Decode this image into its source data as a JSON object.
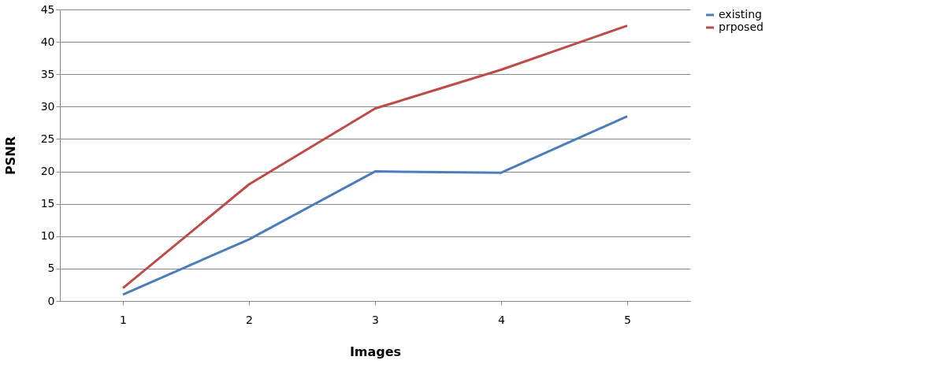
{
  "chart_data": {
    "type": "line",
    "xlabel": "Images",
    "ylabel": "PSNR",
    "categories": [
      "1",
      "2",
      "3",
      "4",
      "5"
    ],
    "series": [
      {
        "name": "existing",
        "color": "#4a7ebb",
        "values": [
          1,
          9.5,
          20,
          19.8,
          28.5
        ]
      },
      {
        "name": "prposed",
        "color": "#be4b48",
        "values": [
          2,
          18,
          29.7,
          35.7,
          42.5
        ]
      }
    ],
    "ylim": [
      0,
      45
    ],
    "yticks": [
      0,
      5,
      10,
      15,
      20,
      25,
      30,
      35,
      40,
      45
    ],
    "grid": "y",
    "legend": "right",
    "marker": "none",
    "line_style": "solid"
  }
}
